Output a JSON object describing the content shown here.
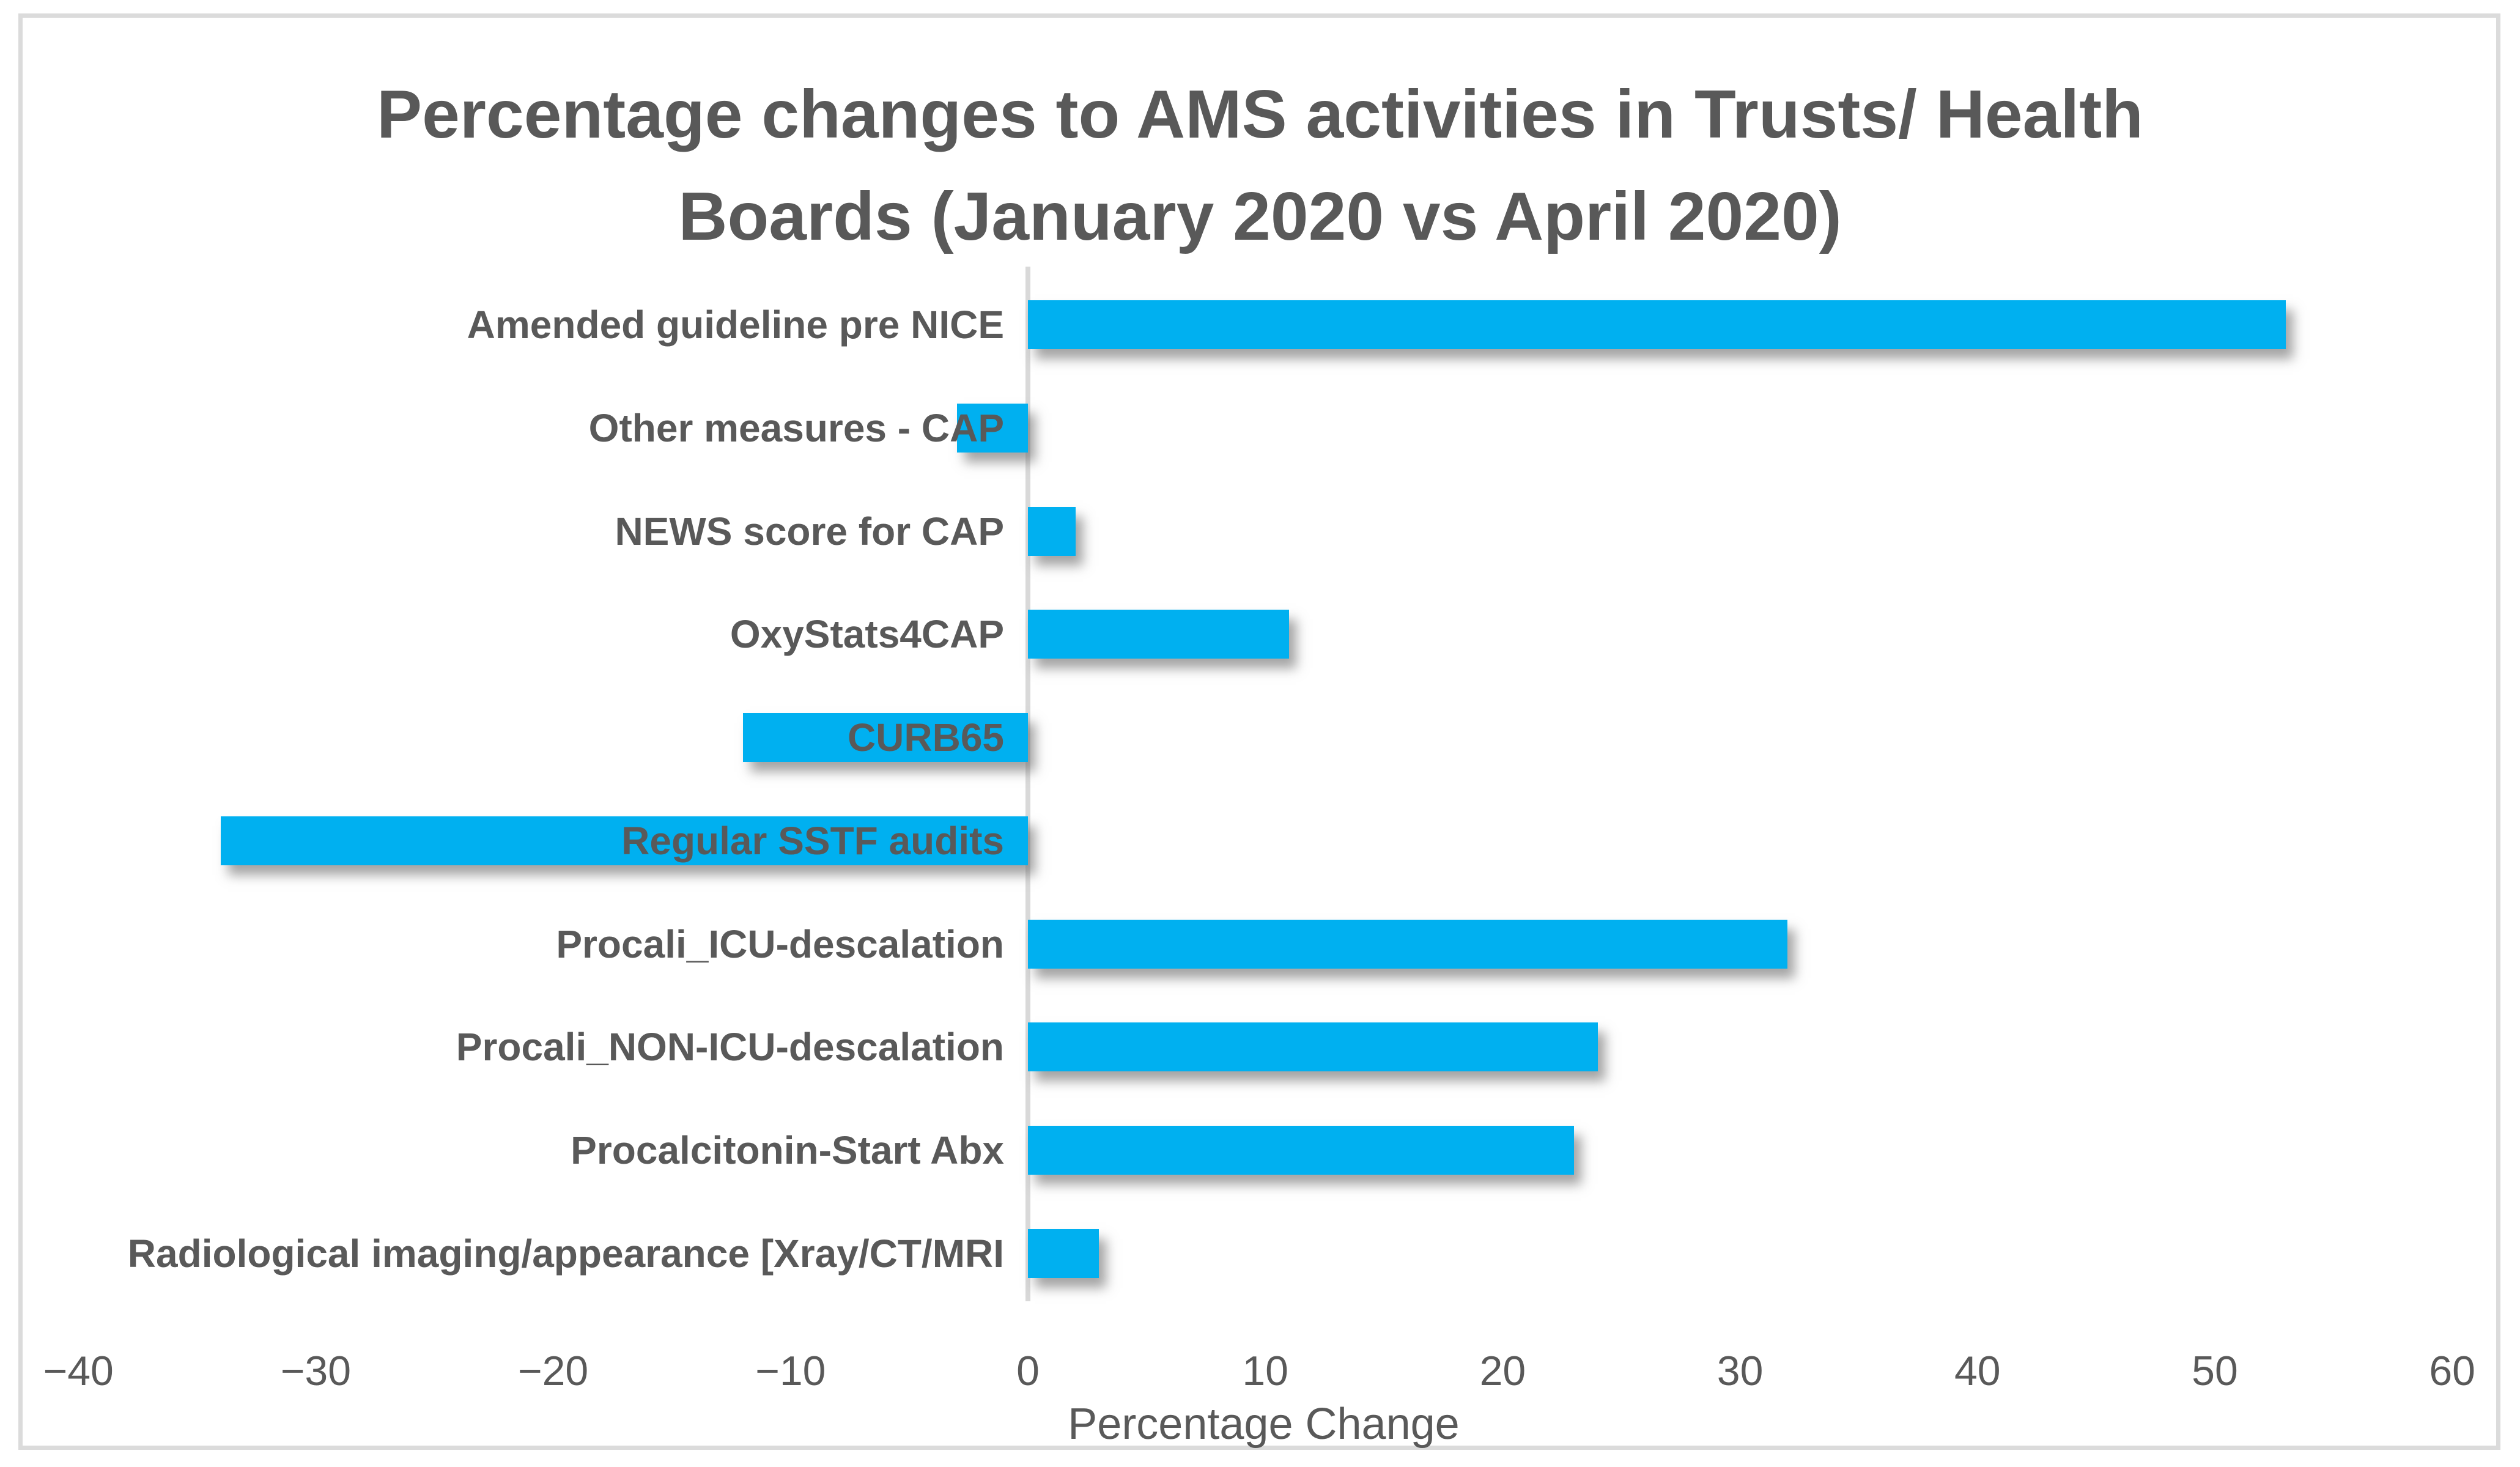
{
  "chart_data": {
    "type": "bar",
    "orientation": "horizontal",
    "title": "Percentage changes to AMS activities in Trusts/ Health\nBoards (January 2020 vs April 2020)",
    "categories": [
      "Amended guideline pre NICE",
      "Other measures - CAP",
      "NEWS score for CAP",
      "OxyStats4CAP",
      "CURB65",
      "Regular SSTF audits",
      "Procali_ICU-descalation",
      "Procali_NON-ICU-descalation",
      "Procalcitonin-Start Abx",
      "Radiological imaging/appearance [Xray/CT/MRI"
    ],
    "values": [
      53,
      -3,
      2,
      11,
      -12,
      -34,
      32,
      24,
      23,
      3
    ],
    "xlabel": "Percentage Change",
    "xlim": [
      -40,
      60
    ],
    "xticks": [
      -40,
      -30,
      -20,
      -10,
      0,
      10,
      20,
      30,
      40,
      50,
      60
    ],
    "xtick_labels": [
      "−40",
      "−30",
      "−20",
      "−10",
      "0",
      "10",
      "20",
      "30",
      "40",
      "50",
      "60"
    ],
    "grid": false,
    "legend": false,
    "bar_color": "#00B0F0",
    "text_color": "#595959",
    "axis_line_color": "#D9D9D9",
    "frame_border_color": "#DBDBDB"
  }
}
